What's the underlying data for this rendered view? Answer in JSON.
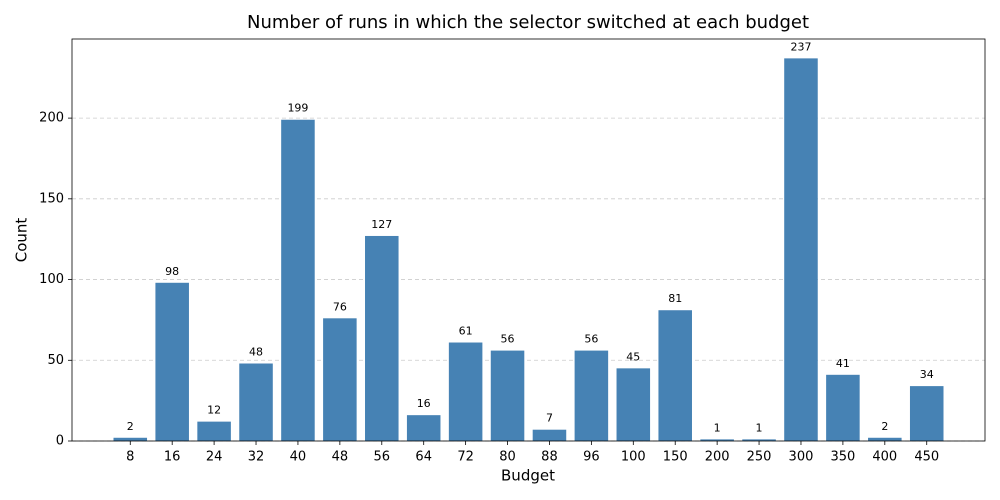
{
  "chart_data": {
    "type": "bar",
    "title": "Number of runs in which the selector switched at each budget",
    "x_label": "Budget",
    "y_label": "Count",
    "categories": [
      "8",
      "16",
      "24",
      "32",
      "40",
      "48",
      "56",
      "64",
      "72",
      "80",
      "88",
      "96",
      "100",
      "150",
      "200",
      "250",
      "300",
      "350",
      "400",
      "450"
    ],
    "values": [
      2,
      98,
      12,
      48,
      199,
      76,
      127,
      16,
      61,
      56,
      7,
      56,
      45,
      81,
      1,
      1,
      237,
      41,
      2,
      34
    ],
    "color": "#4682b4",
    "ylim": [
      0,
      249
    ],
    "yticks": [
      0,
      50,
      100,
      150,
      200
    ],
    "grid": true
  }
}
